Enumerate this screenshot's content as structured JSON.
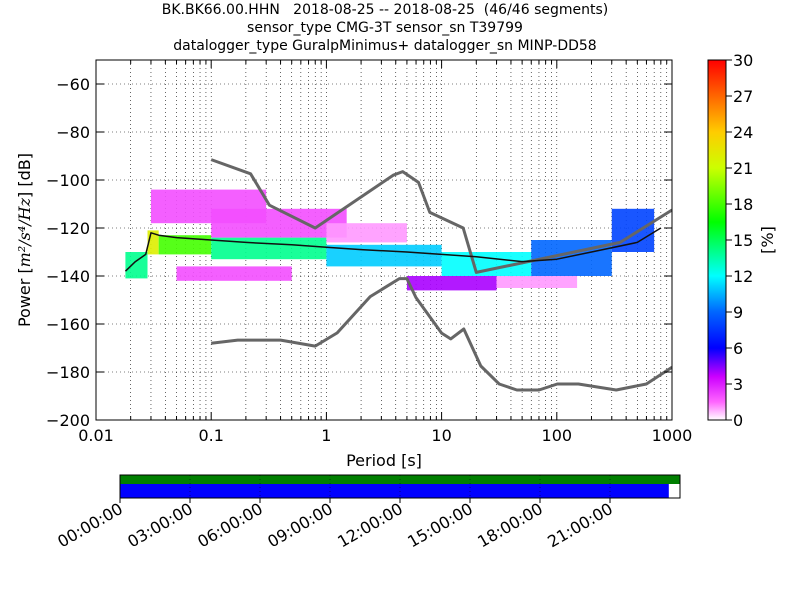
{
  "title_lines": [
    "BK.BK66.00.HHN   2018-08-25 -- 2018-08-25  (46/46 segments)",
    "sensor_type CMG-3T sensor_sn T39799",
    "datalogger_type GuralpMinimus+ datalogger_sn MINP-DD58"
  ],
  "chart_data": {
    "type": "heatmap",
    "xlabel": "Period [s]",
    "ylabel": "Power [m²/s⁴/Hz] [dB]",
    "ylabel_parts": {
      "prefix": "Power [",
      "unit": "m²/s⁴/Hz",
      "suffix": "] [dB]"
    },
    "x_scale": "log",
    "xlim": [
      0.01,
      1000
    ],
    "ylim": [
      -200,
      -50
    ],
    "x_ticks": [
      0.01,
      0.1,
      1,
      10,
      100,
      1000
    ],
    "x_tick_labels": [
      "0.01",
      "0.1",
      "1",
      "10",
      "100",
      "1000"
    ],
    "y_ticks": [
      -200,
      -180,
      -160,
      -140,
      -120,
      -100,
      -80,
      -60
    ],
    "y_tick_labels": [
      "−200",
      "−180",
      "−160",
      "−140",
      "−120",
      "−100",
      "−80",
      "−60"
    ],
    "grid": "dotted",
    "colorbar": {
      "label": "[%]",
      "range": [
        0,
        30
      ],
      "ticks": [
        0,
        3,
        6,
        9,
        12,
        15,
        18,
        21,
        24,
        27,
        30
      ],
      "tick_labels": [
        "0",
        "3",
        "6",
        "9",
        "12",
        "15",
        "18",
        "21",
        "24",
        "27",
        "30"
      ],
      "colormap": "pqlx"
    },
    "mode_curve": {
      "period": [
        0.018,
        0.022,
        0.027,
        0.03,
        0.035,
        0.05,
        0.1,
        0.2,
        0.5,
        1,
        2,
        5,
        10,
        20,
        50,
        100,
        200,
        500,
        800
      ],
      "db": [
        -138,
        -134,
        -131,
        -122,
        -123,
        -124,
        -125,
        -126,
        -127,
        -128,
        -129,
        -130,
        -131,
        -132,
        -134,
        -133,
        -130,
        -126,
        -120
      ]
    },
    "nhnm": {
      "period": [
        0.1,
        0.22,
        0.32,
        0.8,
        3.8,
        4.6,
        6.3,
        7.9,
        15.4,
        20,
        354.8,
        1000
      ],
      "db": [
        -91.5,
        -97.4,
        -110.5,
        -120,
        -98,
        -96.5,
        -101,
        -113.5,
        -120,
        -138.5,
        -126,
        -112.5
      ]
    },
    "nlnm": {
      "period": [
        0.1,
        0.17,
        0.4,
        0.8,
        1.24,
        2.4,
        4.3,
        5,
        6,
        10,
        12,
        15.6,
        21.9,
        31.6,
        45,
        70,
        101,
        154,
        328,
        600,
        1000
      ],
      "db": [
        -168,
        -166.7,
        -166.7,
        -169.2,
        -163.7,
        -148.6,
        -141.1,
        -141.1,
        -149,
        -163.8,
        -166.2,
        -162.1,
        -177.5,
        -185,
        -187.5,
        -187.5,
        -185,
        -185,
        -187.5,
        -185,
        -178
      ]
    },
    "heatmap_bins": [
      {
        "period": [
          0.018,
          0.028
        ],
        "db": [
          -141,
          -130
        ],
        "percent": 14
      },
      {
        "period": [
          0.028,
          0.035
        ],
        "db": [
          -131,
          -121
        ],
        "percent": 22
      },
      {
        "period": [
          0.035,
          0.1
        ],
        "db": [
          -131,
          -123
        ],
        "percent": 18
      },
      {
        "period": [
          0.1,
          1
        ],
        "db": [
          -133,
          -124
        ],
        "percent": 14
      },
      {
        "period": [
          1,
          10
        ],
        "db": [
          -136,
          -127
        ],
        "percent": 11
      },
      {
        "period": [
          10,
          60
        ],
        "db": [
          -140,
          -130
        ],
        "percent": 12
      },
      {
        "period": [
          60,
          300
        ],
        "db": [
          -140,
          -125
        ],
        "percent": 9
      },
      {
        "period": [
          300,
          700
        ],
        "db": [
          -130,
          -112
        ],
        "percent": 8
      },
      {
        "period": [
          0.03,
          0.3
        ],
        "db": [
          -118,
          -104
        ],
        "percent": 2
      },
      {
        "period": [
          0.1,
          1.5
        ],
        "db": [
          -124,
          -112
        ],
        "percent": 2
      },
      {
        "period": [
          1,
          5
        ],
        "db": [
          -126,
          -118
        ],
        "percent": 1
      },
      {
        "period": [
          0.05,
          0.5
        ],
        "db": [
          -142,
          -136
        ],
        "percent": 2
      },
      {
        "period": [
          5,
          30
        ],
        "db": [
          -146,
          -140
        ],
        "percent": 4
      },
      {
        "period": [
          30,
          150
        ],
        "db": [
          -145,
          -140
        ],
        "percent": 1
      }
    ]
  },
  "time_coverage": {
    "tick_labels": [
      "00:00:00",
      "03:00:00",
      "06:00:00",
      "09:00:00",
      "12:00:00",
      "15:00:00",
      "18:00:00",
      "21:00:00"
    ],
    "green_coverage_fraction": 1.0,
    "blue_coverage_fraction": 0.98,
    "colors": {
      "green": "#007f00",
      "blue": "#0000ff"
    }
  },
  "colors": {
    "curve": "#666666",
    "mode": "#111111"
  }
}
